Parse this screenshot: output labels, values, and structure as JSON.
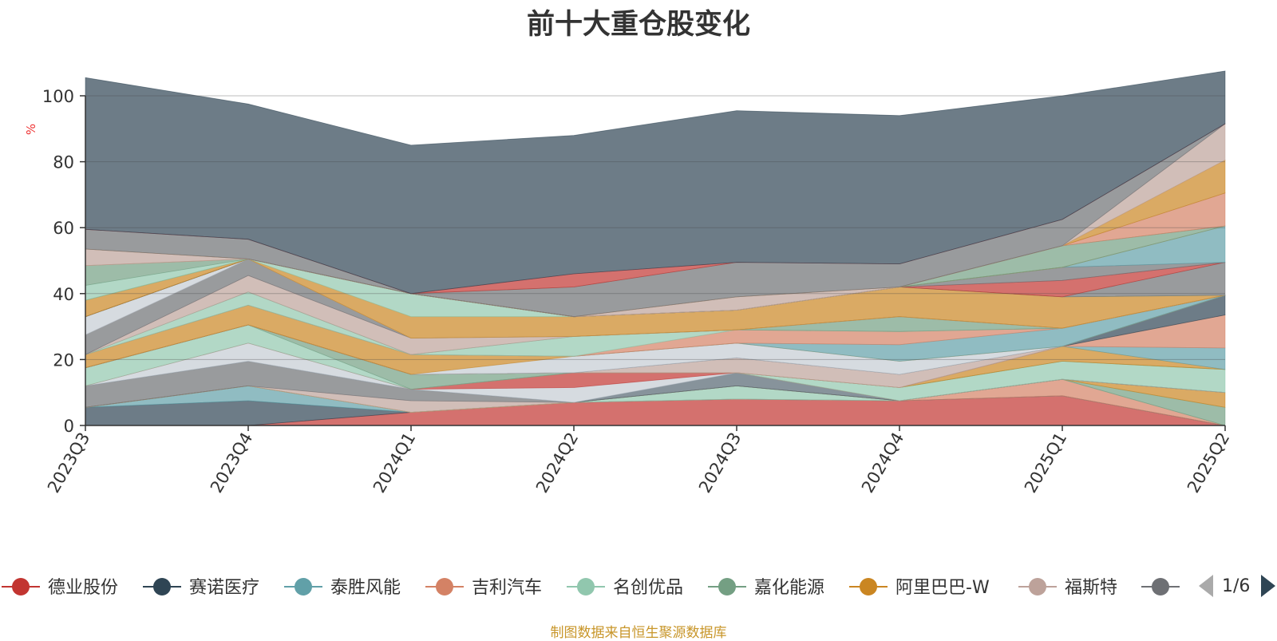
{
  "chart_data": {
    "type": "area",
    "stacked": true,
    "title": "前十大重仓股变化",
    "ylabel": "%",
    "ylim": [
      0,
      100
    ],
    "yticks": [
      0,
      20,
      40,
      60,
      80,
      100
    ],
    "grid": true,
    "legend_position": "bottom",
    "x": [
      "2023Q3",
      "2023Q4",
      "2024Q1",
      "2024Q2",
      "2024Q3",
      "2024Q4",
      "2025Q1",
      "2025Q2"
    ],
    "series": [
      {
        "name": "德业股份",
        "color": "#c23531",
        "values": [
          0,
          0,
          4,
          7,
          8,
          7.5,
          9,
          0
        ]
      },
      {
        "name": "赛诺医疗",
        "color": "#2f4554",
        "values": [
          5.5,
          7.5,
          0,
          0,
          0,
          0,
          0,
          0
        ]
      },
      {
        "name": "泰胜风能",
        "color": "#61a0a8",
        "values": [
          0,
          4.5,
          0,
          0,
          0,
          0,
          0,
          0
        ]
      },
      {
        "name": "吉利汽车",
        "color": "#d48265",
        "values": [
          0,
          0,
          0,
          0,
          0,
          0,
          5,
          0
        ]
      },
      {
        "name": "名创优品",
        "color": "#91c7ae",
        "values": [
          0,
          0,
          0,
          0,
          4,
          0,
          0,
          0
        ]
      },
      {
        "name": "嘉化能源",
        "color": "#749f83",
        "values": [
          0,
          0,
          0,
          0,
          0,
          0,
          0,
          5.5
        ]
      },
      {
        "name": "阿里巴巴-W",
        "color": "#ca8622",
        "values": [
          0,
          0,
          0,
          0,
          0,
          0,
          0,
          4.5
        ]
      },
      {
        "name": "福斯特",
        "color": "#bda29a",
        "values": [
          0,
          0,
          3.5,
          0,
          0,
          0,
          0,
          0
        ]
      },
      {
        "name": "",
        "color": "#6e7074",
        "values": [
          6.5,
          7.5,
          3.5,
          0,
          0,
          0,
          0,
          0
        ]
      },
      {
        "name": "",
        "color": "#546570",
        "values": [
          0,
          0,
          0,
          0,
          4,
          0,
          0,
          0
        ]
      },
      {
        "name": "",
        "color": "#c4ccd3",
        "values": [
          0,
          5.5,
          0,
          4.5,
          0,
          0,
          0,
          0
        ]
      },
      {
        "name": "",
        "color": "#c23531",
        "values": [
          0,
          0,
          0,
          4.5,
          0,
          0,
          0,
          0
        ]
      },
      {
        "name": "",
        "color": "#91c7ae",
        "values": [
          5.5,
          5.5,
          0,
          0,
          0,
          4,
          5.5,
          7
        ]
      },
      {
        "name": "",
        "color": "#749f83",
        "values": [
          0,
          0,
          4.5,
          0,
          0,
          0,
          0,
          0
        ]
      },
      {
        "name": "",
        "color": "#ca8622",
        "values": [
          0,
          0,
          0,
          0,
          0,
          0,
          4.5,
          0
        ]
      },
      {
        "name": "",
        "color": "#61a0a8",
        "values": [
          0,
          0,
          0,
          0,
          0,
          0,
          0,
          6.5
        ]
      },
      {
        "name": "",
        "color": "#d48265",
        "values": [
          0,
          0,
          0,
          0,
          0,
          0,
          0,
          10
        ]
      },
      {
        "name": "",
        "color": "#bda29a",
        "values": [
          0,
          0,
          0,
          0,
          4.5,
          4,
          0,
          0
        ]
      },
      {
        "name": "",
        "color": "#2f4554",
        "values": [
          0,
          0,
          0,
          0,
          0,
          0,
          0,
          6
        ]
      },
      {
        "name": "",
        "color": "#c4ccd3",
        "values": [
          0,
          0,
          0,
          5,
          4.5,
          4,
          0,
          0
        ]
      },
      {
        "name": "",
        "color": "#ca8622",
        "values": [
          4,
          6,
          6,
          0,
          0,
          0,
          0,
          0
        ]
      },
      {
        "name": "",
        "color": "#61a0a8",
        "values": [
          0,
          0,
          0,
          0,
          0,
          5,
          5.5,
          0
        ]
      },
      {
        "name": "",
        "color": "#d48265",
        "values": [
          0,
          0,
          0,
          0,
          4,
          4,
          0,
          0
        ]
      },
      {
        "name": "",
        "color": "#91c7ae",
        "values": [
          0,
          4,
          0,
          6,
          0,
          0,
          0,
          0
        ]
      },
      {
        "name": "",
        "color": "#749f83",
        "values": [
          0,
          0,
          0,
          0,
          0,
          4.5,
          0,
          0
        ]
      },
      {
        "name": "",
        "color": "#bda29a",
        "values": [
          0,
          5,
          5,
          0,
          0,
          0,
          0,
          0
        ]
      },
      {
        "name": "",
        "color": "#6e7074",
        "values": [
          6,
          5,
          0,
          0,
          0,
          0,
          0,
          0
        ]
      },
      {
        "name": "",
        "color": "#c4ccd3",
        "values": [
          5.5,
          0,
          0,
          0,
          0,
          0,
          0,
          0
        ]
      },
      {
        "name": "",
        "color": "#ca8622",
        "values": [
          0,
          0,
          6.5,
          6,
          6,
          9,
          9.5,
          0
        ]
      },
      {
        "name": "",
        "color": "#91c7ae",
        "values": [
          0,
          0,
          7,
          0,
          0,
          0,
          0,
          0
        ]
      },
      {
        "name": "",
        "color": "#6e7074",
        "values": [
          0,
          0,
          0,
          0,
          0,
          0,
          0,
          10
        ]
      },
      {
        "name": "",
        "color": "#c23531",
        "values": [
          0,
          0,
          0,
          0,
          0,
          0,
          5,
          0
        ]
      },
      {
        "name": "",
        "color": "#6e7074",
        "values": [
          0,
          0,
          0,
          0,
          0,
          0,
          4,
          0
        ]
      },
      {
        "name": "",
        "color": "#61a0a8",
        "values": [
          0,
          0,
          0,
          0,
          0,
          0,
          0,
          11
        ]
      },
      {
        "name": "",
        "color": "#ca8622",
        "values": [
          5,
          0,
          0,
          0,
          0,
          0,
          0,
          0
        ]
      },
      {
        "name": "",
        "color": "#749f83",
        "values": [
          0,
          0,
          0,
          0,
          0,
          0,
          6.5,
          0
        ]
      },
      {
        "name": "",
        "color": "#91c7ae",
        "values": [
          4.5,
          0,
          0,
          0,
          0,
          0,
          0,
          0
        ]
      },
      {
        "name": "",
        "color": "#749f83",
        "values": [
          6,
          0,
          0,
          0,
          0,
          0,
          0,
          0
        ]
      },
      {
        "name": "",
        "color": "#d48265",
        "values": [
          0,
          0,
          0,
          0,
          0,
          0,
          0,
          10
        ]
      },
      {
        "name": "",
        "color": "#bda29a",
        "values": [
          5,
          0,
          0,
          0,
          4,
          0,
          0,
          0
        ]
      },
      {
        "name": "",
        "color": "#ca8622",
        "values": [
          0,
          0,
          0,
          0,
          0,
          0,
          0,
          10
        ]
      },
      {
        "name": "",
        "color": "#bda29a",
        "values": [
          0,
          0,
          0,
          0,
          0,
          0,
          0,
          11
        ]
      },
      {
        "name": "",
        "color": "#6e7074",
        "values": [
          6,
          6,
          0,
          9,
          10.5,
          7,
          8,
          0
        ]
      },
      {
        "name": "",
        "color": "#c23531",
        "values": [
          0,
          0,
          0,
          4,
          0,
          0,
          0,
          0
        ]
      },
      {
        "name": "",
        "color": "#2f4554",
        "values": [
          46,
          41,
          45,
          42,
          46,
          45,
          37.5,
          16
        ]
      }
    ]
  },
  "legend": {
    "items": [
      {
        "label": "德业股份",
        "color": "#c23531"
      },
      {
        "label": "赛诺医疗",
        "color": "#2f4554"
      },
      {
        "label": "泰胜风能",
        "color": "#61a0a8"
      },
      {
        "label": "吉利汽车",
        "color": "#d48265"
      },
      {
        "label": "名创优品",
        "color": "#91c7ae"
      },
      {
        "label": "嘉化能源",
        "color": "#749f83"
      },
      {
        "label": "阿里巴巴-W",
        "color": "#ca8622"
      },
      {
        "label": "福斯特",
        "color": "#bda29a"
      },
      {
        "label": "",
        "color": "#6e7074"
      }
    ],
    "page_text": "1/6"
  },
  "footer": {
    "credit": "制图数据来自恒生聚源数据库"
  }
}
